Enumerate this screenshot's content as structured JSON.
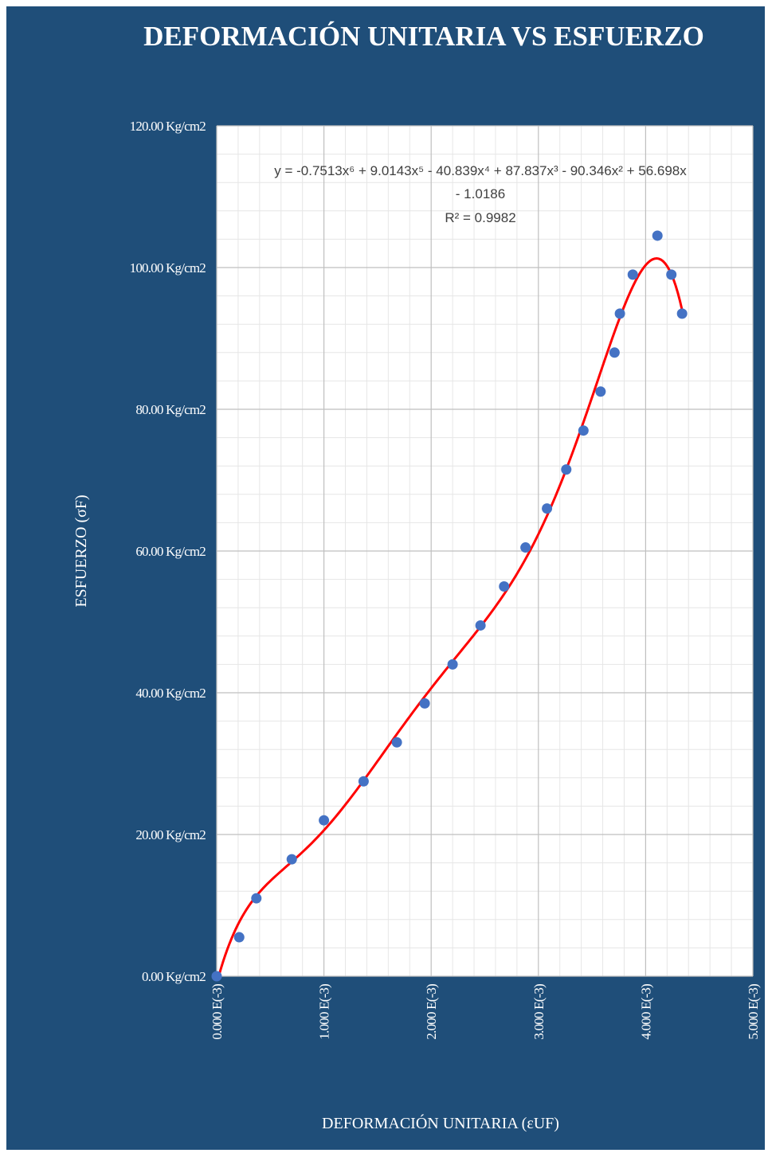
{
  "chart_data": {
    "type": "scatter",
    "title": "DEFORMACIÓN UNITARIA VS ESFUERZO",
    "xlabel": "DEFORMACIÓN  UNITARIA  (εUF)",
    "ylabel": "ESFUERZO  (σF)",
    "xlim": [
      0,
      5
    ],
    "ylim": [
      0,
      120
    ],
    "x_ticks": [
      "0.000 E(-3)",
      "1.000 E(-3)",
      "2.000 E(-3)",
      "3.000 E(-3)",
      "4.000 E(-3)",
      "5.000 E(-3)"
    ],
    "y_ticks": [
      "0.00 Kg/cm2",
      "20.00 Kg/cm2",
      "40.00 Kg/cm2",
      "60.00 Kg/cm2",
      "80.00 Kg/cm2",
      "100.00 Kg/cm2",
      "120.00 Kg/cm2"
    ],
    "grid": true,
    "series": [
      {
        "color": "#4472c4",
        "points": [
          [
            0.0,
            0.0
          ],
          [
            0.21,
            5.5
          ],
          [
            0.37,
            11.0
          ],
          [
            0.7,
            16.5
          ],
          [
            1.0,
            22.0
          ],
          [
            1.37,
            27.5
          ],
          [
            1.68,
            33.0
          ],
          [
            1.94,
            38.5
          ],
          [
            2.2,
            44.0
          ],
          [
            2.46,
            49.5
          ],
          [
            2.68,
            55.0
          ],
          [
            2.88,
            60.5
          ],
          [
            3.08,
            66.0
          ],
          [
            3.26,
            71.5
          ],
          [
            3.42,
            77.0
          ],
          [
            3.58,
            82.5
          ],
          [
            3.71,
            88.0
          ],
          [
            3.76,
            93.5
          ],
          [
            3.88,
            99.0
          ],
          [
            4.11,
            104.5
          ],
          [
            4.24,
            99.0
          ],
          [
            4.34,
            93.5
          ]
        ]
      }
    ],
    "trendline": {
      "type": "polynomial",
      "order": 6,
      "color": "#ff0000",
      "coefficients": [
        -1.0186,
        56.698,
        -90.346,
        87.837,
        -40.839,
        9.0143,
        -0.7513
      ],
      "x_range": [
        0.0,
        4.34
      ],
      "equation_line1": "y = -0.7513x⁶ + 9.0143x⁵ - 40.839x⁴ + 87.837x³ - 90.346x² + 56.698x",
      "equation_line2": "- 1.0186",
      "r_squared": "R² = 0.9982"
    }
  },
  "colors": {
    "background": "#1f4e79",
    "plot_area": "#ffffff",
    "points": "#4472c4",
    "trendline": "#ff0000",
    "text": "#ffffff"
  }
}
